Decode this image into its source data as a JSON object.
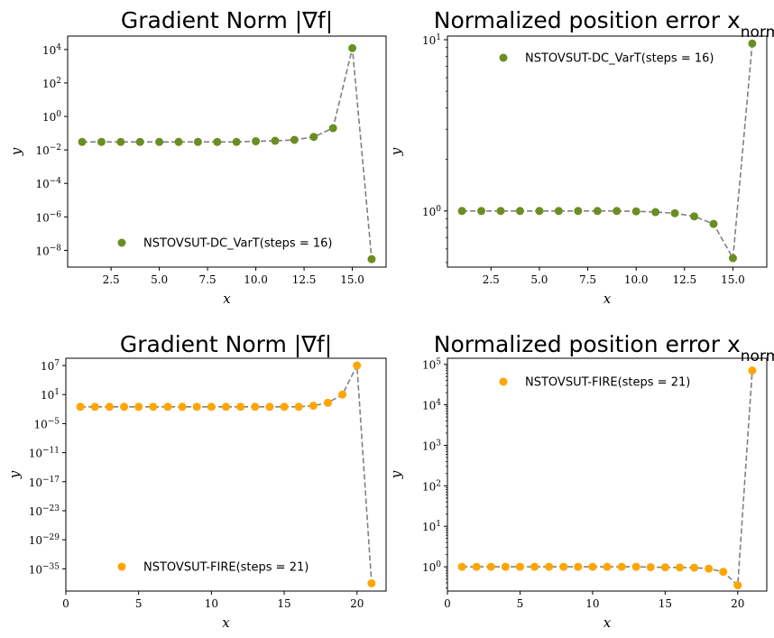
{
  "colors": {
    "olive": "#6b8e23",
    "orange": "#ffa500",
    "line": "#808080"
  },
  "chart_data": [
    {
      "type": "line",
      "title": "Gradient Norm |∇f|",
      "xlabel": "x",
      "ylabel": "y",
      "yscale": "log",
      "xlim": [
        0.25,
        16.75
      ],
      "ylim_exp": [
        -9,
        4.8
      ],
      "xticks": [
        2.5,
        5.0,
        7.5,
        10.0,
        12.5,
        15.0
      ],
      "xtick_labels": [
        "2.5",
        "5.0",
        "7.5",
        "10.0",
        "12.5",
        "15.0"
      ],
      "ytick_exps": [
        -8,
        -6,
        -4,
        -2,
        0,
        2,
        4
      ],
      "ytick_labels": [
        "10^-8",
        "10^-6",
        "10^-4",
        "10^-2",
        "10^0",
        "10^2",
        "10^4"
      ],
      "legend": "lower-center",
      "series": [
        {
          "name": "NSTOVSUT-DC_VarT(steps = 16)",
          "color": "#6b8e23",
          "x": [
            1,
            2,
            3,
            4,
            5,
            6,
            7,
            8,
            9,
            10,
            11,
            12,
            13,
            14,
            15,
            16
          ],
          "y": [
            0.03,
            0.03,
            0.03,
            0.03,
            0.03,
            0.03,
            0.03,
            0.03,
            0.03,
            0.033,
            0.035,
            0.04,
            0.06,
            0.2,
            12000,
            3e-09
          ]
        }
      ]
    },
    {
      "type": "line",
      "title": "Normalized position error x_norm",
      "xlabel": "x",
      "ylabel": "y",
      "yscale": "log",
      "xlim": [
        0.25,
        16.75
      ],
      "ylim": [
        0.47,
        10.5
      ],
      "xticks": [
        2.5,
        5.0,
        7.5,
        10.0,
        12.5,
        15.0
      ],
      "xtick_labels": [
        "2.5",
        "5.0",
        "7.5",
        "10.0",
        "12.5",
        "15.0"
      ],
      "ytick_exps": [
        0,
        1
      ],
      "ytick_labels": [
        "10^0",
        "10^1"
      ],
      "legend": "upper-center",
      "series": [
        {
          "name": "NSTOVSUT-DC_VarT(steps = 16)",
          "color": "#6b8e23",
          "x": [
            1,
            2,
            3,
            4,
            5,
            6,
            7,
            8,
            9,
            10,
            11,
            12,
            13,
            14,
            15,
            16
          ],
          "y": [
            1.0,
            1.0,
            1.0,
            1.0,
            1.0,
            1.0,
            1.0,
            1.0,
            1.0,
            0.995,
            0.985,
            0.97,
            0.93,
            0.84,
            0.53,
            9.5
          ]
        }
      ]
    },
    {
      "type": "line",
      "title": "Gradient Norm |∇f|",
      "xlabel": "x",
      "ylabel": "y",
      "yscale": "log",
      "xlim": [
        0,
        22
      ],
      "ylim_exp": [
        -39.6,
        8.5
      ],
      "xticks": [
        0,
        5,
        10,
        15,
        20
      ],
      "xtick_labels": [
        "0",
        "5",
        "10",
        "15",
        "20"
      ],
      "ytick_exps": [
        -35,
        -29,
        -23,
        -17,
        -11,
        -5,
        1,
        7
      ],
      "ytick_labels": [
        "10^-35",
        "10^-29",
        "10^-23",
        "10^-17",
        "10^-11",
        "10^-5",
        "10^1",
        "10^7"
      ],
      "legend": "lower-center",
      "series": [
        {
          "name": "NSTOVSUT-FIRE(steps = 21)",
          "color": "#ffa500",
          "x": [
            1,
            2,
            3,
            4,
            5,
            6,
            7,
            8,
            9,
            10,
            11,
            12,
            13,
            14,
            15,
            16,
            17,
            18,
            19,
            20,
            21
          ],
          "y": [
            0.03,
            0.03,
            0.03,
            0.03,
            0.03,
            0.03,
            0.03,
            0.03,
            0.03,
            0.03,
            0.03,
            0.03,
            0.03,
            0.03,
            0.03,
            0.03,
            0.05,
            0.2,
            10,
            10000000.0,
            1e-38
          ]
        }
      ]
    },
    {
      "type": "line",
      "title": "Normalized position error x_norm",
      "xlabel": "x",
      "ylabel": "y",
      "yscale": "log",
      "xlim": [
        0,
        22
      ],
      "ylim_exp": [
        -0.6,
        5.15
      ],
      "xticks": [
        0,
        5,
        10,
        15,
        20
      ],
      "xtick_labels": [
        "0",
        "5",
        "10",
        "15",
        "20"
      ],
      "ytick_exps": [
        0,
        1,
        2,
        3,
        4,
        5
      ],
      "ytick_labels": [
        "10^0",
        "10^1",
        "10^2",
        "10^3",
        "10^4",
        "10^5"
      ],
      "legend": "upper-center",
      "series": [
        {
          "name": "NSTOVSUT-FIRE(steps = 21)",
          "color": "#ffa500",
          "x": [
            1,
            2,
            3,
            4,
            5,
            6,
            7,
            8,
            9,
            10,
            11,
            12,
            13,
            14,
            15,
            16,
            17,
            18,
            19,
            20,
            21
          ],
          "y": [
            1.0,
            1.0,
            1.0,
            1.0,
            1.0,
            1.0,
            1.0,
            1.0,
            1.0,
            1.0,
            1.0,
            1.0,
            1.0,
            0.98,
            0.97,
            0.96,
            0.95,
            0.9,
            0.75,
            0.35,
            70000
          ]
        }
      ]
    }
  ]
}
